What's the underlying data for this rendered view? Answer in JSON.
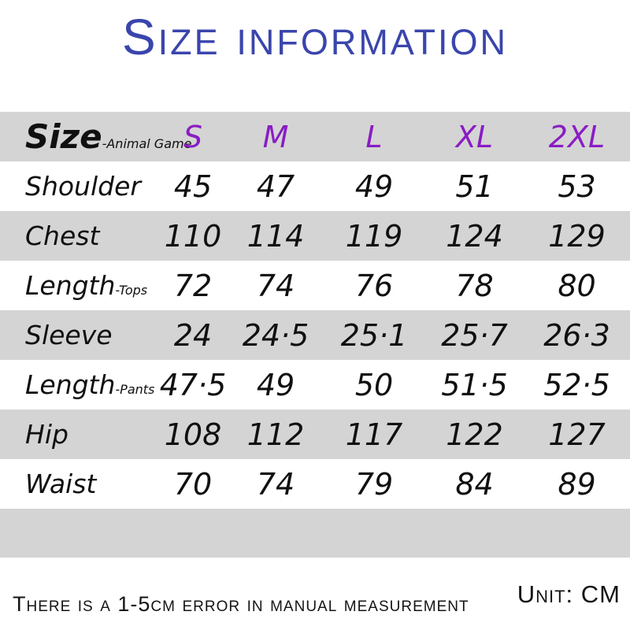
{
  "title": "Size information",
  "colors": {
    "title_blue": "#3a45ac",
    "size_purple": "#8a1cc4",
    "band_gray": "#d4d4d4",
    "text_black": "#101010"
  },
  "table": {
    "header": {
      "label": "Size",
      "label_suffix": "-Animal Game",
      "columns": [
        "S",
        "M",
        "L",
        "XL",
        "2XL"
      ]
    },
    "rows": [
      {
        "key": "shoulder",
        "label": "Shoulder",
        "suffix": "",
        "values": [
          "45",
          "47",
          "49",
          "51",
          "53"
        ]
      },
      {
        "key": "chest",
        "label": "Chest",
        "suffix": "",
        "values": [
          "110",
          "114",
          "119",
          "124",
          "129"
        ]
      },
      {
        "key": "length-tops",
        "label": "Length",
        "suffix": "-Tops",
        "values": [
          "72",
          "74",
          "76",
          "78",
          "80"
        ]
      },
      {
        "key": "sleeve",
        "label": "Sleeve",
        "suffix": "",
        "values": [
          "24",
          "24·5",
          "25·1",
          "25·7",
          "26·3"
        ]
      },
      {
        "key": "length-pants",
        "label": "Length",
        "suffix": "-Pants",
        "values": [
          "47·5",
          "49",
          "50",
          "51·5",
          "52·5"
        ]
      },
      {
        "key": "hip",
        "label": "Hip",
        "suffix": "",
        "values": [
          "108",
          "112",
          "117",
          "122",
          "127"
        ]
      },
      {
        "key": "waist",
        "label": "Waist",
        "suffix": "",
        "values": [
          "70",
          "74",
          "79",
          "84",
          "89"
        ]
      }
    ]
  },
  "footer": {
    "note": "There is a 1-5cm error in manual measurement",
    "unit": "Unit: CM"
  },
  "chart_data": {
    "type": "table",
    "title": "Size information",
    "unit": "CM",
    "columns": [
      "S",
      "M",
      "L",
      "XL",
      "2XL"
    ],
    "rows": [
      {
        "measure": "Shoulder",
        "values": [
          45,
          47,
          49,
          51,
          53
        ]
      },
      {
        "measure": "Chest",
        "values": [
          110,
          114,
          119,
          124,
          129
        ]
      },
      {
        "measure": "Length-Tops",
        "values": [
          72,
          74,
          76,
          78,
          80
        ]
      },
      {
        "measure": "Sleeve",
        "values": [
          24,
          24.5,
          25.1,
          25.7,
          26.3
        ]
      },
      {
        "measure": "Length-Pants",
        "values": [
          47.5,
          49,
          50,
          51.5,
          52.5
        ]
      },
      {
        "measure": "Hip",
        "values": [
          108,
          112,
          117,
          122,
          127
        ]
      },
      {
        "measure": "Waist",
        "values": [
          70,
          74,
          79,
          84,
          89
        ]
      }
    ],
    "note": "There is a 1-5cm error in manual measurement"
  }
}
